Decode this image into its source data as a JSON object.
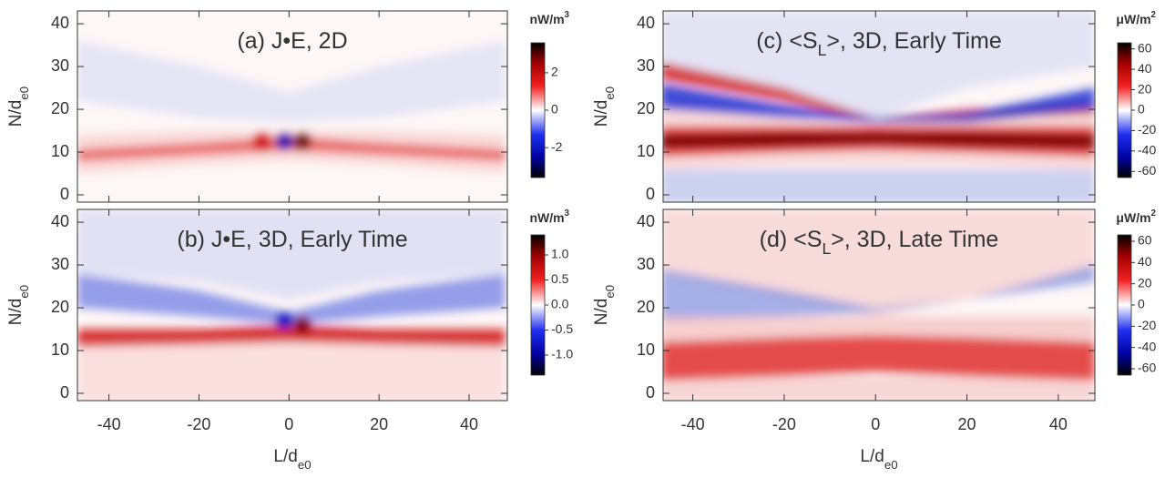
{
  "chart_data": [
    {
      "type": "heatmap",
      "title": [
        "(a) J•E, 2D"
      ],
      "ylabel": [
        "N/d",
        "e0"
      ],
      "xlim": [
        -47,
        48.5
      ],
      "ylim": [
        -1.7,
        43
      ],
      "xticks": [
        -40,
        -20,
        0,
        20,
        40
      ],
      "yticks": [
        0,
        10,
        20,
        30,
        40
      ],
      "xticklabels": false,
      "colorbar_label": [
        "nW/m",
        "3"
      ],
      "clim": [
        -3.6,
        3.6
      ],
      "cticks": [
        -2,
        0,
        2
      ]
    },
    {
      "type": "heatmap",
      "title": [
        "(b) J•E, 3D, Early Time"
      ],
      "xlabel": [
        "L/d",
        "e0"
      ],
      "ylabel": [
        "N/d",
        "e0"
      ],
      "xlim": [
        -47,
        48.5
      ],
      "ylim": [
        -1.7,
        43
      ],
      "xticks": [
        -40,
        -20,
        0,
        20,
        40
      ],
      "yticks": [
        0,
        10,
        20,
        30,
        40
      ],
      "xticklabels": true,
      "colorbar_label": [
        "nW/m",
        "3"
      ],
      "clim": [
        -1.4,
        1.4
      ],
      "cticks": [
        {
          "value": -1.0,
          "label": "-1.0"
        },
        {
          "value": -0.5,
          "label": "-0.5"
        },
        {
          "value": 0.0,
          "label": "0.0"
        },
        {
          "value": 0.5,
          "label": "0.5"
        },
        {
          "value": 1.0,
          "label": "1.0"
        }
      ]
    },
    {
      "type": "heatmap",
      "title": [
        "(c) <S",
        "L",
        ">, 3D, Early Time"
      ],
      "ylabel": [
        "N/d",
        "e0"
      ],
      "xlim": [
        -46.5,
        48
      ],
      "ylim": [
        -1.7,
        43
      ],
      "xticks": [
        -40,
        -20,
        0,
        20,
        40
      ],
      "yticks": [
        0,
        10,
        20,
        30,
        40
      ],
      "xticklabels": false,
      "colorbar_label": [
        "μW/m",
        "2"
      ],
      "clim": [
        -66,
        66
      ],
      "cticks": [
        -60,
        -40,
        -20,
        0,
        20,
        40,
        60
      ]
    },
    {
      "type": "heatmap",
      "title": [
        "(d) <S",
        "L",
        ">, 3D, Late Time"
      ],
      "xlabel": [
        "L/d",
        "e0"
      ],
      "ylabel": [
        "N/d",
        "e0"
      ],
      "xlim": [
        -46.5,
        48
      ],
      "ylim": [
        -1.7,
        43
      ],
      "xticks": [
        -40,
        -20,
        0,
        20,
        40
      ],
      "yticks": [
        0,
        10,
        20,
        30,
        40
      ],
      "xticklabels": true,
      "colorbar_label": [
        "μW/m",
        "2"
      ],
      "clim": [
        -66,
        66
      ],
      "cticks": [
        -60,
        -40,
        -20,
        0,
        20,
        40,
        60
      ]
    }
  ]
}
